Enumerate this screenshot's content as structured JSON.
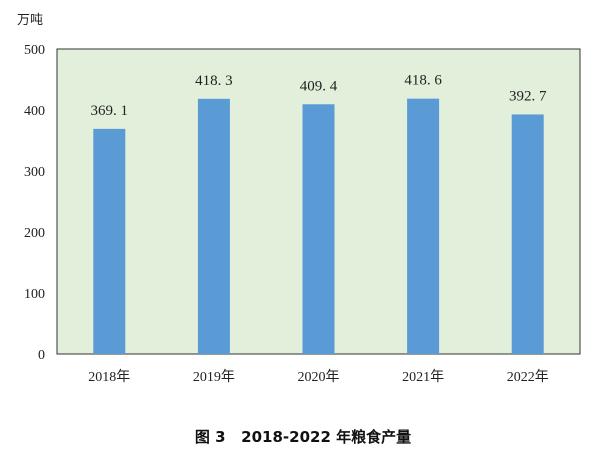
{
  "chart_data": {
    "type": "bar",
    "title": "",
    "caption": "图 3   2018-2022 年粮食产量",
    "ylabel": "万吨",
    "xlabel": "",
    "categories": [
      "2018年",
      "2019年",
      "2020年",
      "2021年",
      "2022年"
    ],
    "values": [
      369.1,
      418.3,
      409.4,
      418.6,
      392.7
    ],
    "data_labels": [
      "369. 1",
      "418. 3",
      "409. 4",
      "418. 6",
      "392. 7"
    ],
    "yticks": [
      "0",
      "100",
      "200",
      "300",
      "400",
      "500"
    ],
    "ylim": [
      0,
      500
    ],
    "grid": false,
    "legend": "none",
    "colors": {
      "bar": "#5b9bd5",
      "plot_background": "#e2efda",
      "axis": "#333333"
    }
  }
}
